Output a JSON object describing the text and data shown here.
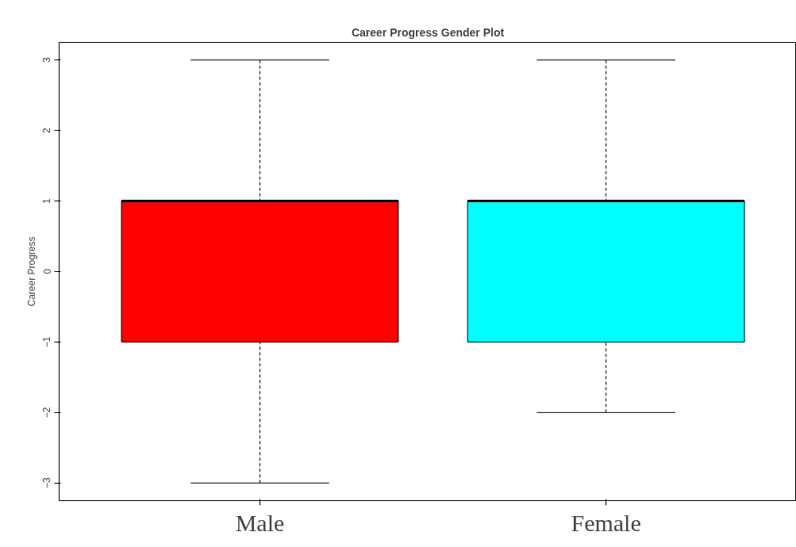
{
  "chart_data": {
    "type": "box",
    "title": "Career Progress Gender Plot",
    "ylabel": "Career Progress",
    "categories": [
      "Male",
      "Female"
    ],
    "colors": [
      "#ff0000",
      "#00ffff"
    ],
    "boxes": [
      {
        "low": -3,
        "q1": -1,
        "median": 1,
        "q3": 1,
        "high": 3
      },
      {
        "low": -2,
        "q1": -1,
        "median": 1,
        "q3": 1,
        "high": 3
      }
    ],
    "ylim": [
      -3.25,
      3.25
    ],
    "yticks": [
      -3,
      -2,
      -1,
      0,
      1,
      2,
      3
    ]
  }
}
